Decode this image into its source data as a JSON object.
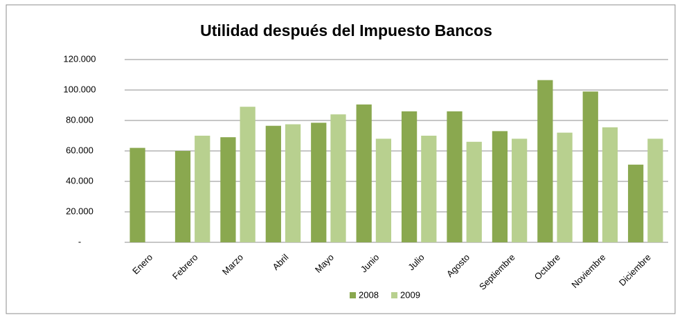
{
  "chart_data": {
    "type": "bar",
    "title": "Utilidad después del Impuesto  Bancos",
    "categories": [
      "Enero",
      "Febrero",
      "Marzo",
      "Abril",
      "Mayo",
      "Junio",
      "Julio",
      "Agosto",
      "Septiembre",
      "Octubre",
      "Noviembre",
      "Diciembre"
    ],
    "series": [
      {
        "name": "2008",
        "color": "#8aa84f",
        "values": [
          62000,
          60000,
          69000,
          76500,
          78500,
          90500,
          86000,
          86000,
          73000,
          106500,
          99000,
          51000
        ]
      },
      {
        "name": "2009",
        "color": "#b8d08f",
        "values": [
          null,
          70000,
          89000,
          77500,
          84000,
          68000,
          70000,
          66000,
          68000,
          72000,
          75500,
          68000
        ]
      }
    ],
    "ylim": [
      0,
      120000
    ],
    "yticks": [
      {
        "value": 0,
        "label": "-"
      },
      {
        "value": 20000,
        "label": "20.000"
      },
      {
        "value": 40000,
        "label": "40.000"
      },
      {
        "value": 60000,
        "label": "60.000"
      },
      {
        "value": 80000,
        "label": "80.000"
      },
      {
        "value": 100000,
        "label": "100.000"
      },
      {
        "value": 120000,
        "label": "120.000"
      }
    ],
    "grid": true,
    "legend": "bottom"
  }
}
